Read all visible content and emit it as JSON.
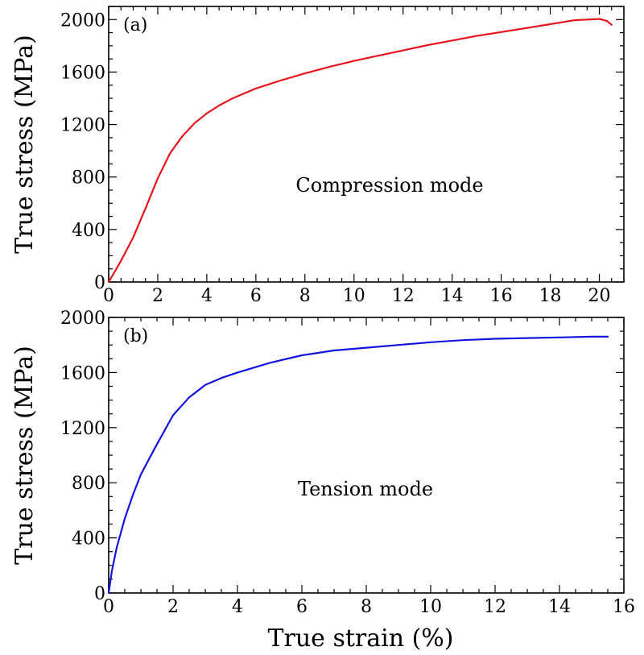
{
  "figure": {
    "shared_xlabel": "True strain (%)"
  },
  "chart_data": [
    {
      "type": "line",
      "panel_label": "(a)",
      "annotation": "Compression mode",
      "title": "",
      "xlabel": "",
      "ylabel": "True stress (MPa)",
      "xlim": [
        0,
        21
      ],
      "ylim": [
        0,
        2100
      ],
      "xticks": [
        0,
        2,
        4,
        6,
        8,
        10,
        12,
        14,
        16,
        18,
        20
      ],
      "yticks": [
        0,
        400,
        800,
        1200,
        1600,
        2000
      ],
      "grid": false,
      "legend": "none",
      "series": [
        {
          "color": "#e8141b",
          "x": [
            0,
            0.5,
            1,
            1.5,
            2,
            2.5,
            3,
            3.5,
            4,
            4.5,
            5,
            6,
            7,
            8,
            9,
            10,
            11,
            12,
            13,
            14,
            15,
            16,
            17,
            18,
            19,
            19.5,
            20,
            20.3,
            20.5
          ],
          "y": [
            0,
            160,
            340,
            560,
            790,
            980,
            1110,
            1210,
            1285,
            1345,
            1395,
            1475,
            1535,
            1590,
            1640,
            1685,
            1725,
            1765,
            1805,
            1840,
            1875,
            1905,
            1935,
            1965,
            1995,
            2000,
            2005,
            1990,
            1960
          ]
        }
      ]
    },
    {
      "type": "line",
      "panel_label": "(b)",
      "annotation": "Tension mode",
      "title": "",
      "xlabel": "True strain (%)",
      "ylabel": "True stress (MPa)",
      "xlim": [
        0,
        16
      ],
      "ylim": [
        0,
        2000
      ],
      "xticks": [
        0,
        2,
        4,
        6,
        8,
        10,
        12,
        14,
        16
      ],
      "yticks": [
        0,
        400,
        800,
        1200,
        1600,
        2000
      ],
      "grid": false,
      "legend": "none",
      "series": [
        {
          "color": "#1414e0",
          "x": [
            0,
            0.1,
            0.25,
            0.5,
            0.75,
            1,
            1.5,
            2,
            2.5,
            3,
            3.5,
            4,
            5,
            6,
            7,
            8,
            9,
            10,
            11,
            12,
            13,
            14,
            15,
            15.5
          ],
          "y": [
            0,
            160,
            330,
            540,
            710,
            860,
            1080,
            1290,
            1420,
            1510,
            1560,
            1600,
            1670,
            1725,
            1760,
            1780,
            1800,
            1820,
            1835,
            1845,
            1850,
            1855,
            1860,
            1860
          ]
        }
      ]
    }
  ]
}
